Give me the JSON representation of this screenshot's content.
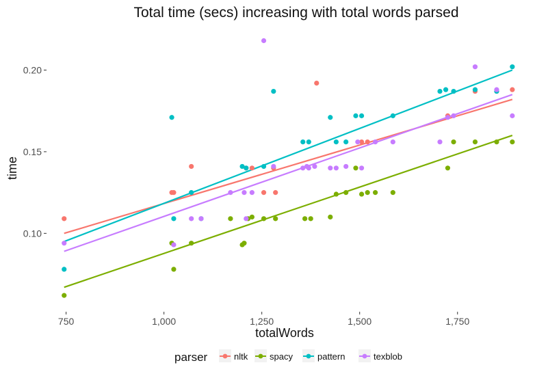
{
  "chart_data": {
    "type": "scatter",
    "title": "Total time (secs) increasing with total words parsed",
    "xlabel": "totalWords",
    "ylabel": "time",
    "xlim": [
      700,
      1920
    ],
    "ylim": [
      0.052,
      0.227
    ],
    "x_ticks": [
      750,
      1000,
      1250,
      1500,
      1750
    ],
    "x_tick_labels": [
      "750",
      "1,000",
      "1,250",
      "1,500",
      "1,750"
    ],
    "y_ticks": [
      0.1,
      0.15,
      0.2
    ],
    "y_tick_labels": [
      "0.10",
      "0.15",
      "0.20"
    ],
    "grid": false,
    "legend": {
      "title": "parser",
      "position": "bottom"
    },
    "series": [
      {
        "name": "nltk",
        "color": "#F8766D",
        "fit": {
          "x": [
            745,
            1890
          ],
          "y": [
            0.1,
            0.182
          ]
        },
        "points": [
          [
            745,
            0.109
          ],
          [
            1020,
            0.125
          ],
          [
            1025,
            0.125
          ],
          [
            1070,
            0.141
          ],
          [
            1210,
            0.14
          ],
          [
            1225,
            0.14
          ],
          [
            1255,
            0.125
          ],
          [
            1280,
            0.14
          ],
          [
            1285,
            0.125
          ],
          [
            1390,
            0.192
          ],
          [
            1505,
            0.156
          ],
          [
            1520,
            0.156
          ],
          [
            1795,
            0.187
          ],
          [
            1850,
            0.187
          ],
          [
            1890,
            0.188
          ],
          [
            1725,
            0.172
          ]
        ]
      },
      {
        "name": "spacy",
        "color": "#7CAE00",
        "fit": {
          "x": [
            745,
            1890
          ],
          "y": [
            0.067,
            0.16
          ]
        },
        "points": [
          [
            745,
            0.062
          ],
          [
            1020,
            0.094
          ],
          [
            1025,
            0.078
          ],
          [
            1070,
            0.094
          ],
          [
            1170,
            0.109
          ],
          [
            1200,
            0.093
          ],
          [
            1205,
            0.094
          ],
          [
            1215,
            0.109
          ],
          [
            1225,
            0.11
          ],
          [
            1255,
            0.109
          ],
          [
            1285,
            0.109
          ],
          [
            1360,
            0.109
          ],
          [
            1375,
            0.109
          ],
          [
            1425,
            0.11
          ],
          [
            1440,
            0.124
          ],
          [
            1465,
            0.125
          ],
          [
            1490,
            0.14
          ],
          [
            1505,
            0.124
          ],
          [
            1520,
            0.125
          ],
          [
            1540,
            0.125
          ],
          [
            1585,
            0.125
          ],
          [
            1725,
            0.14
          ],
          [
            1740,
            0.156
          ],
          [
            1795,
            0.156
          ],
          [
            1850,
            0.156
          ],
          [
            1890,
            0.156
          ]
        ]
      },
      {
        "name": "pattern",
        "color": "#00BFC4",
        "fit": {
          "x": [
            745,
            1890
          ],
          "y": [
            0.095,
            0.2
          ]
        },
        "points": [
          [
            745,
            0.078
          ],
          [
            1020,
            0.171
          ],
          [
            1025,
            0.109
          ],
          [
            1070,
            0.125
          ],
          [
            1095,
            0.109
          ],
          [
            1200,
            0.141
          ],
          [
            1210,
            0.14
          ],
          [
            1255,
            0.141
          ],
          [
            1280,
            0.187
          ],
          [
            1355,
            0.156
          ],
          [
            1370,
            0.156
          ],
          [
            1425,
            0.171
          ],
          [
            1440,
            0.156
          ],
          [
            1465,
            0.156
          ],
          [
            1490,
            0.172
          ],
          [
            1505,
            0.172
          ],
          [
            1585,
            0.172
          ],
          [
            1705,
            0.187
          ],
          [
            1720,
            0.188
          ],
          [
            1740,
            0.187
          ],
          [
            1795,
            0.188
          ],
          [
            1850,
            0.187
          ],
          [
            1890,
            0.202
          ]
        ]
      },
      {
        "name": "texblob",
        "color": "#C77CFF",
        "fit": {
          "x": [
            745,
            1890
          ],
          "y": [
            0.089,
            0.185
          ]
        },
        "points": [
          [
            745,
            0.094
          ],
          [
            1025,
            0.093
          ],
          [
            1070,
            0.109
          ],
          [
            1095,
            0.109
          ],
          [
            1170,
            0.125
          ],
          [
            1205,
            0.125
          ],
          [
            1210,
            0.109
          ],
          [
            1225,
            0.125
          ],
          [
            1255,
            0.218
          ],
          [
            1280,
            0.141
          ],
          [
            1355,
            0.14
          ],
          [
            1365,
            0.141
          ],
          [
            1370,
            0.14
          ],
          [
            1385,
            0.141
          ],
          [
            1425,
            0.14
          ],
          [
            1440,
            0.14
          ],
          [
            1465,
            0.141
          ],
          [
            1505,
            0.14
          ],
          [
            1495,
            0.156
          ],
          [
            1540,
            0.156
          ],
          [
            1585,
            0.156
          ],
          [
            1705,
            0.156
          ],
          [
            1725,
            0.171
          ],
          [
            1740,
            0.172
          ],
          [
            1795,
            0.202
          ],
          [
            1850,
            0.188
          ],
          [
            1890,
            0.172
          ]
        ]
      }
    ]
  }
}
